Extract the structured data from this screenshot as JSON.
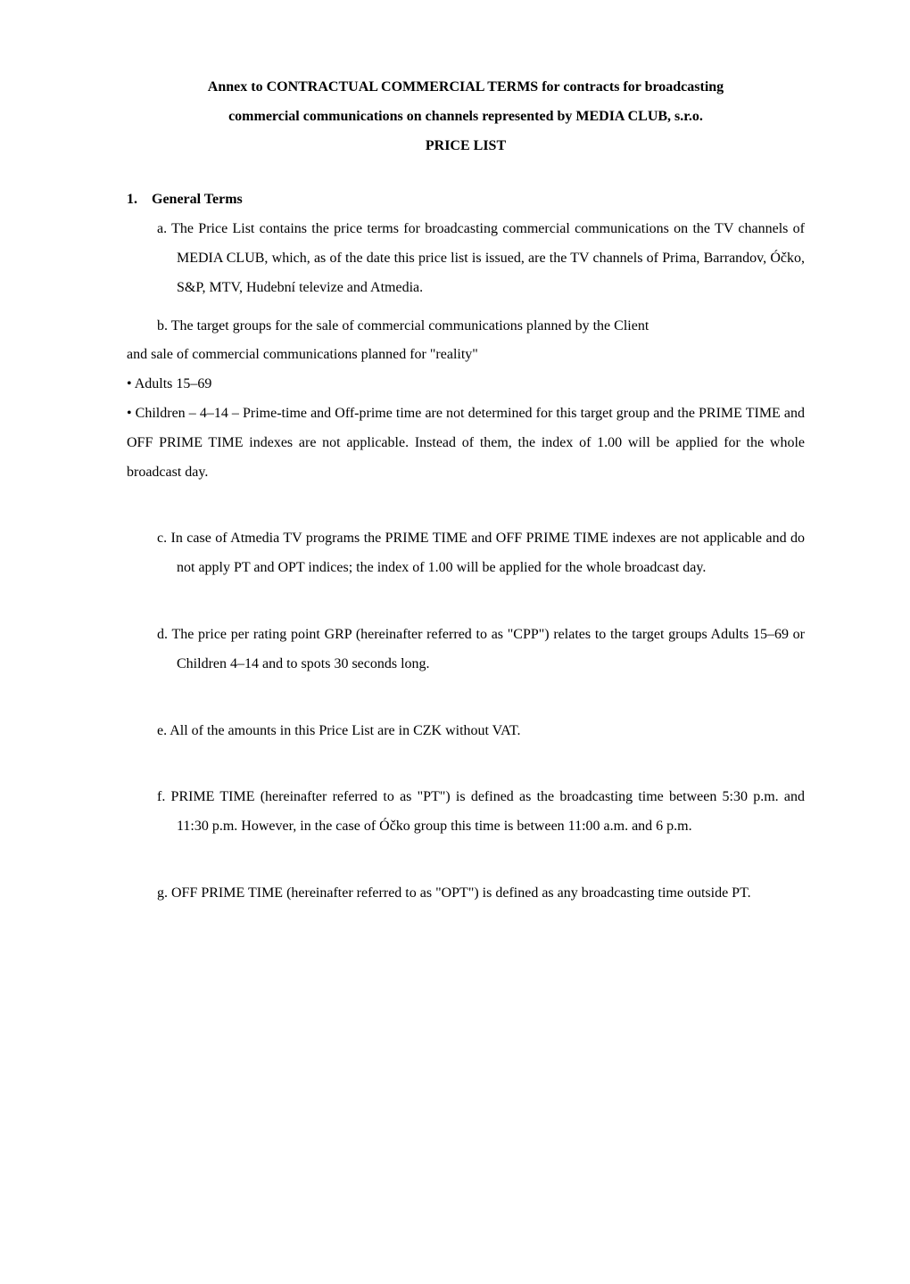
{
  "title": {
    "line1": "Annex to CONTRACTUAL COMMERCIAL TERMS for contracts for broadcasting",
    "line2": "commercial communications on channels represented by MEDIA CLUB, s.r.o.",
    "line3": "PRICE LIST"
  },
  "section1": {
    "heading": "1. General Terms",
    "a": "a.   The Price List contains the price terms for broadcasting commercial communications on the TV channels of MEDIA CLUB, which, as of the date this price list is issued, are the TV channels of Prima, Barrandov, Óčko, S&P, MTV, Hudební televize and Atmedia.",
    "b_lead": "b.   The target groups for the sale of commercial communications planned by the Client",
    "b_cont": "and sale of commercial communications planned for \"reality\"",
    "bullet1": "• Adults 15–69",
    "bullet2": "• Children – 4–14 – Prime-time and Off-prime time are not determined for this target group and the PRIME TIME and OFF PRIME TIME indexes are not applicable. Instead of them, the index of 1.00 will be applied for the whole broadcast day.",
    "c": "c.   In case of Atmedia TV programs the PRIME TIME and OFF PRIME TIME indexes are not applicable and do not apply PT and OPT indices; the index of 1.00 will be applied for the whole broadcast day.",
    "d": "d.   The price per rating point GRP (hereinafter referred to as \"CPP\") relates to the target groups Adults 15–69 or Children 4–14 and to spots 30 seconds long.",
    "e": "e.   All of the amounts in this Price List are in CZK without VAT.",
    "f": "f.    PRIME TIME (hereinafter referred to as \"PT\") is defined as the broadcasting time between 5:30 p.m. and 11:30 p.m. However, in the case of Óčko group this time is between 11:00 a.m. and 6 p.m.",
    "g": "g.   OFF PRIME TIME (hereinafter referred to as \"OPT\") is defined as any broadcasting time outside PT."
  }
}
